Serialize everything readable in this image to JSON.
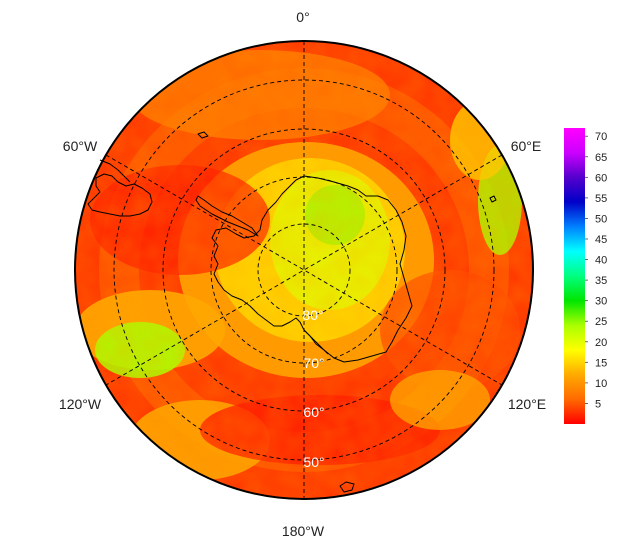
{
  "map": {
    "projection": "south-polar-stereographic",
    "longitude_labels": [
      "0°",
      "60°E",
      "120°E",
      "180°W",
      "120°W",
      "60°W"
    ],
    "latitude_labels": [
      "80°",
      "70°",
      "60°",
      "50°"
    ],
    "colors": {
      "outline": "#000000",
      "coastline": "#000000",
      "graticule": "#000000"
    }
  },
  "colorbar": {
    "ticks": [
      "5",
      "10",
      "15",
      "20",
      "25",
      "30",
      "35",
      "40",
      "45",
      "50",
      "55",
      "60",
      "65",
      "70"
    ],
    "min": 0,
    "max": 72,
    "colormap": [
      "#ff0000",
      "#ff6a00",
      "#ffaa00",
      "#ffff00",
      "#aaff00",
      "#00e600",
      "#00ff80",
      "#00ffff",
      "#0080ff",
      "#0000c8",
      "#5500cc",
      "#cc00ff",
      "#ff00ff"
    ]
  }
}
